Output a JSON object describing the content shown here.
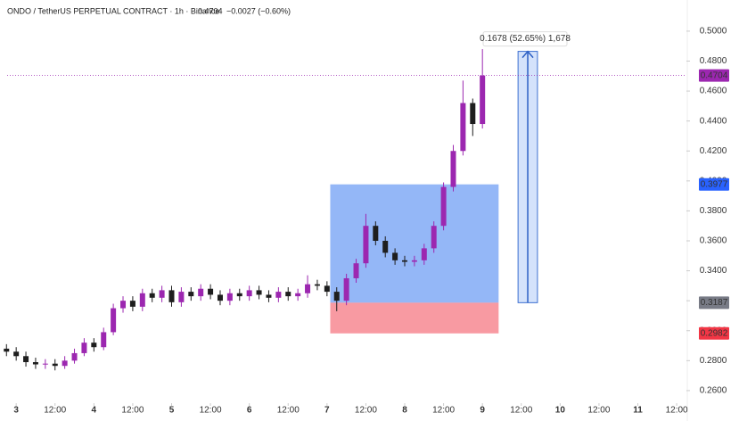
{
  "chart_data": {
    "type": "candlestick",
    "title": "ONDO / TetherUS PERPETUAL CONTRACT · 1h · Binance",
    "last_price": 0.4704,
    "change": "−0.0027 (−0.60%)",
    "up_color": "#9c27b0",
    "down_color": "#1e1e1e",
    "xlim": [
      -5,
      207
    ],
    "xticks": [
      {
        "value": 0,
        "label": "3"
      },
      {
        "value": 12,
        "label": "12:00"
      },
      {
        "value": 24,
        "label": "4"
      },
      {
        "value": 36,
        "label": "12:00"
      },
      {
        "value": 48,
        "label": "5"
      },
      {
        "value": 60,
        "label": "12:00"
      },
      {
        "value": 72,
        "label": "6"
      },
      {
        "value": 84,
        "label": "12:00"
      },
      {
        "value": 96,
        "label": "7"
      },
      {
        "value": 108,
        "label": "12:00"
      },
      {
        "value": 120,
        "label": "8"
      },
      {
        "value": 132,
        "label": "12:00"
      },
      {
        "value": 144,
        "label": "9"
      },
      {
        "value": 156,
        "label": "12:00"
      },
      {
        "value": 168,
        "label": "10"
      },
      {
        "value": 180,
        "label": "12:00"
      },
      {
        "value": 192,
        "label": "11"
      },
      {
        "value": 204,
        "label": "12:00"
      }
    ],
    "ylim": [
      0.2528,
      0.5208
    ],
    "yticks": [
      {
        "value": 0.5,
        "label": "0.5000"
      },
      {
        "value": 0.48,
        "label": "0.4800"
      },
      {
        "value": 0.46,
        "label": "0.4600"
      },
      {
        "value": 0.44,
        "label": "0.4400"
      },
      {
        "value": 0.42,
        "label": "0.4200"
      },
      {
        "value": 0.4,
        "label": "0.4000"
      },
      {
        "value": 0.38,
        "label": "0.3800"
      },
      {
        "value": 0.36,
        "label": "0.3600"
      },
      {
        "value": 0.34,
        "label": "0.3400"
      },
      {
        "value": 0.32,
        "label": "0.3200"
      },
      {
        "value": 0.3,
        "label": "0.3000"
      },
      {
        "value": 0.28,
        "label": "0.2800"
      },
      {
        "value": 0.26,
        "label": "0.2600"
      }
    ],
    "x": [
      -3,
      0,
      3,
      6,
      9,
      12,
      15,
      18,
      21,
      24,
      27,
      30,
      33,
      36,
      39,
      42,
      45,
      48,
      51,
      54,
      57,
      60,
      63,
      66,
      69,
      72,
      75,
      78,
      81,
      84,
      87,
      90,
      93,
      96,
      99,
      102,
      105,
      108,
      111,
      114,
      117,
      120,
      123,
      126,
      129,
      132,
      135,
      138,
      141,
      144
    ],
    "open": [
      0.288,
      0.286,
      0.283,
      0.279,
      0.2775,
      0.278,
      0.2765,
      0.28,
      0.285,
      0.292,
      0.289,
      0.299,
      0.315,
      0.32,
      0.316,
      0.325,
      0.322,
      0.327,
      0.319,
      0.326,
      0.323,
      0.328,
      0.324,
      0.32,
      0.325,
      0.323,
      0.327,
      0.324,
      0.322,
      0.326,
      0.323,
      0.325,
      0.331,
      0.33,
      0.326,
      0.32,
      0.335,
      0.345,
      0.37,
      0.36,
      0.352,
      0.347,
      0.346,
      0.347,
      0.355,
      0.37,
      0.396,
      0.42,
      0.452,
      0.438
    ],
    "high": [
      0.291,
      0.289,
      0.286,
      0.282,
      0.281,
      0.281,
      0.283,
      0.288,
      0.295,
      0.295,
      0.302,
      0.318,
      0.323,
      0.323,
      0.328,
      0.328,
      0.33,
      0.33,
      0.329,
      0.329,
      0.331,
      0.331,
      0.327,
      0.328,
      0.328,
      0.33,
      0.33,
      0.327,
      0.329,
      0.329,
      0.328,
      0.337,
      0.334,
      0.333,
      0.329,
      0.338,
      0.348,
      0.378,
      0.373,
      0.363,
      0.355,
      0.35,
      0.35,
      0.358,
      0.373,
      0.399,
      0.424,
      0.467,
      0.455,
      0.488
    ],
    "low": [
      0.283,
      0.28,
      0.276,
      0.2745,
      0.2745,
      0.2735,
      0.2745,
      0.278,
      0.283,
      0.286,
      0.287,
      0.297,
      0.312,
      0.313,
      0.313,
      0.319,
      0.319,
      0.316,
      0.316,
      0.32,
      0.32,
      0.321,
      0.317,
      0.317,
      0.32,
      0.32,
      0.321,
      0.319,
      0.319,
      0.32,
      0.32,
      0.322,
      0.327,
      0.323,
      0.313,
      0.317,
      0.332,
      0.342,
      0.357,
      0.349,
      0.344,
      0.343,
      0.343,
      0.344,
      0.352,
      0.367,
      0.393,
      0.417,
      0.43,
      0.435
    ],
    "close": [
      0.286,
      0.283,
      0.279,
      0.2775,
      0.278,
      0.2765,
      0.28,
      0.285,
      0.292,
      0.289,
      0.299,
      0.315,
      0.32,
      0.316,
      0.325,
      0.322,
      0.327,
      0.319,
      0.326,
      0.323,
      0.328,
      0.324,
      0.32,
      0.325,
      0.323,
      0.327,
      0.324,
      0.322,
      0.326,
      0.323,
      0.325,
      0.331,
      0.33,
      0.326,
      0.32,
      0.335,
      0.345,
      0.37,
      0.36,
      0.352,
      0.347,
      0.346,
      0.347,
      0.355,
      0.37,
      0.396,
      0.42,
      0.452,
      0.438,
      0.4704
    ],
    "position": {
      "x_range": [
        97,
        149
      ],
      "entry": 0.3187,
      "target": 0.3977,
      "stop": 0.2982,
      "entry_label": "0.3187",
      "target_label": "0.3977",
      "stop_label": "0.2982"
    },
    "measure": {
      "x_range": [
        155,
        161
      ],
      "from": 0.3187,
      "to": 0.4865,
      "label": "0.1678 (52.65%) 1,678"
    },
    "last_price_label": "0.4704"
  }
}
